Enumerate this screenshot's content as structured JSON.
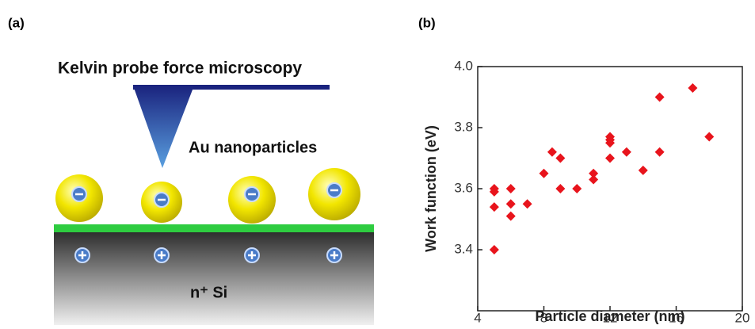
{
  "panels": {
    "a": "(a)",
    "b": "(b)"
  },
  "diagram": {
    "title": "Kelvin probe force microscopy",
    "label": "Au nanoparticles",
    "substrate": "n⁺ Si"
  },
  "chart_data": {
    "type": "scatter",
    "xlabel": "Particle diameter (nm)",
    "ylabel": "Work function (eV)",
    "x": [
      5,
      5,
      5,
      5,
      6,
      6,
      6,
      7,
      8,
      8.5,
      9,
      9,
      10,
      11,
      11,
      12,
      12,
      12,
      12,
      13,
      14,
      15,
      15,
      17,
      18
    ],
    "y": [
      3.6,
      3.59,
      3.54,
      3.4,
      3.6,
      3.55,
      3.51,
      3.55,
      3.65,
      3.72,
      3.7,
      3.6,
      3.6,
      3.65,
      3.63,
      3.77,
      3.76,
      3.75,
      3.7,
      3.72,
      3.66,
      3.72,
      3.9,
      3.93,
      3.77
    ],
    "color": "#e8141c",
    "xlim": [
      4,
      20
    ],
    "ylim": [
      3.2,
      4.0
    ],
    "xticks": [
      4,
      8,
      12,
      16,
      20
    ],
    "yticks": [
      3.4,
      3.6,
      3.8,
      {
        "value": 4.0,
        "label": "4.0"
      }
    ]
  }
}
